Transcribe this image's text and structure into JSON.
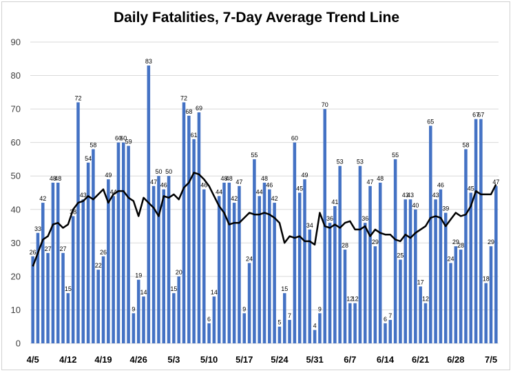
{
  "chart_data": {
    "type": "bar",
    "title": "Daily Fatalities, 7-Day Average Trend Line",
    "xlabel": "",
    "ylabel": "",
    "ylim": [
      0,
      90
    ],
    "yticks": [
      0,
      10,
      20,
      30,
      40,
      50,
      60,
      70,
      80,
      90
    ],
    "grid": true,
    "legend": "none",
    "x_tick_labels": [
      {
        "label": "4/5",
        "index": 0
      },
      {
        "label": "4/12",
        "index": 7
      },
      {
        "label": "4/19",
        "index": 14
      },
      {
        "label": "4/26",
        "index": 21
      },
      {
        "label": "5/3",
        "index": 28
      },
      {
        "label": "5/10",
        "index": 35
      },
      {
        "label": "5/17",
        "index": 42
      },
      {
        "label": "5/24",
        "index": 49
      },
      {
        "label": "5/31",
        "index": 56
      },
      {
        "label": "6/7",
        "index": 63
      },
      {
        "label": "6/14",
        "index": 70
      },
      {
        "label": "6/21",
        "index": 77
      },
      {
        "label": "6/28",
        "index": 84
      },
      {
        "label": "7/5",
        "index": 91
      }
    ],
    "bar_color": "#4472C4",
    "line_color": "#000000",
    "series": [
      {
        "type": "bar",
        "values": [
          26,
          33,
          42,
          27,
          48,
          48,
          27,
          15,
          38,
          72,
          43,
          54,
          58,
          22,
          26,
          49,
          44,
          60,
          60,
          59,
          9,
          19,
          14,
          83,
          47,
          50,
          46,
          50,
          15,
          20,
          72,
          68,
          61,
          69,
          46,
          6,
          14,
          44,
          48,
          48,
          42,
          47,
          9,
          24,
          55,
          44,
          48,
          46,
          42,
          5,
          15,
          7,
          60,
          45,
          49,
          34,
          4,
          9,
          70,
          36,
          41,
          53,
          28,
          12,
          12,
          53,
          36,
          47,
          29,
          48,
          6,
          7,
          55,
          25,
          43,
          43,
          40,
          17,
          12,
          65,
          43,
          46,
          39,
          24,
          29,
          28,
          58,
          45,
          67,
          67,
          18,
          29,
          47
        ]
      },
      {
        "type": "line",
        "values": [
          23,
          27,
          31,
          32,
          35.5,
          36,
          34.5,
          35.5,
          40,
          42,
          42.5,
          44,
          43,
          44.5,
          46,
          42,
          44.5,
          45.5,
          45.5,
          43.5,
          42.5,
          38,
          43.5,
          42,
          40.5,
          38,
          44,
          43.5,
          44.5,
          43,
          46.5,
          48,
          51,
          50.5,
          49,
          47,
          44,
          41,
          39,
          35.5,
          36,
          36,
          37.5,
          39,
          38.5,
          38.5,
          39,
          38.5,
          37.5,
          36,
          30,
          32,
          31.5,
          32,
          30.5,
          30.5,
          29.5,
          39,
          35,
          34.5,
          35.5,
          34.5,
          36,
          36.5,
          34,
          34,
          35,
          32,
          34,
          33,
          32.5,
          32.5,
          31,
          30.5,
          32.5,
          31.5,
          33,
          34,
          35,
          37.5,
          38,
          37.5,
          35,
          37,
          39,
          38,
          38.5,
          41,
          45.5,
          44.5,
          44.5,
          44.5,
          47.5
        ]
      }
    ]
  }
}
